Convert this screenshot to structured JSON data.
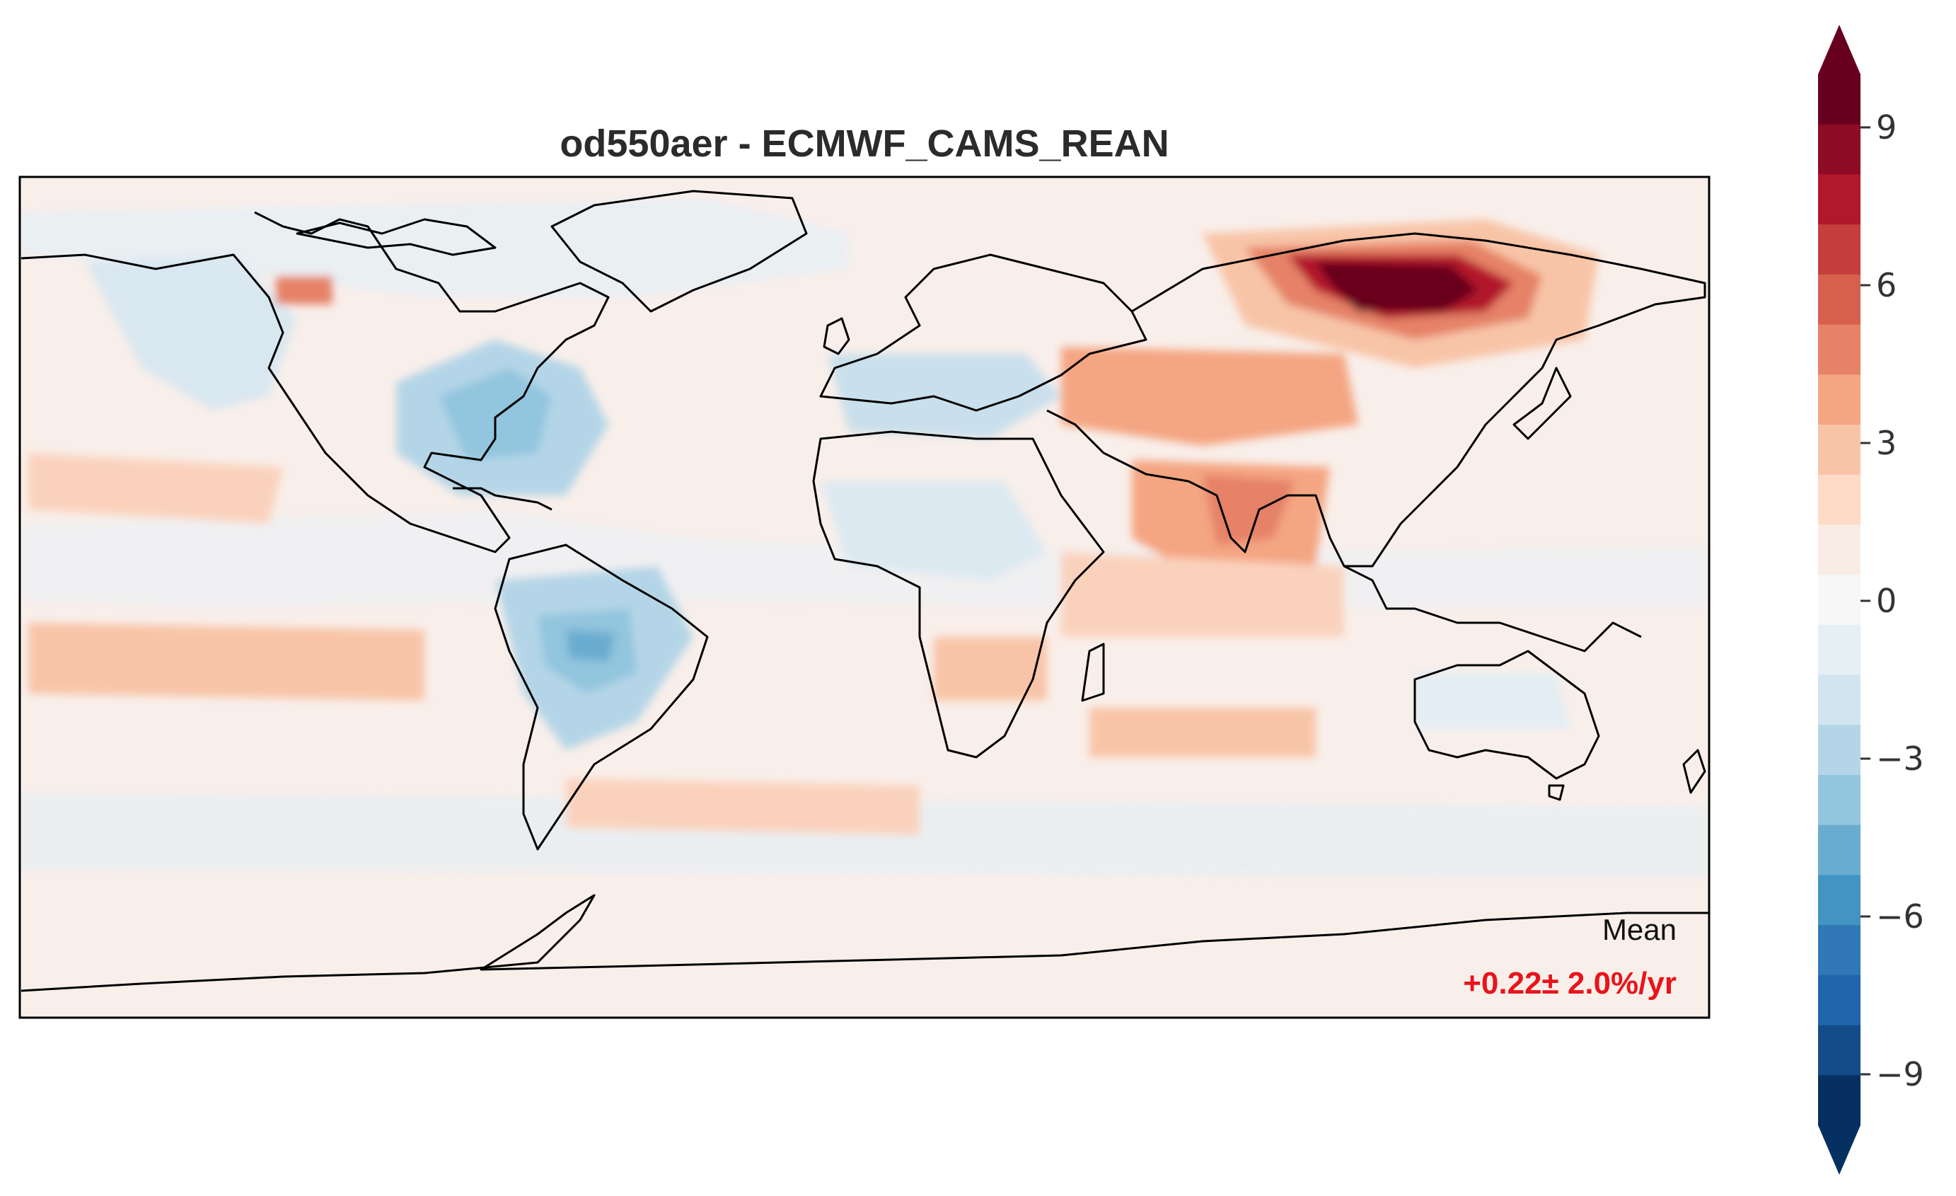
{
  "title": "od550aer - ECMWF_CAMS_REAN",
  "annotation": {
    "label": "Mean",
    "value": "+0.22± 2.0%/yr",
    "value_color": "#e8141b"
  },
  "colorbar": {
    "ticks": [
      "9",
      "6",
      "3",
      "0",
      "−3",
      "−6",
      "−9"
    ],
    "range": [
      -10,
      10
    ],
    "extend": "both",
    "colors_top_to_bottom": [
      "#67001f",
      "#8e0b25",
      "#b2182b",
      "#c53e3d",
      "#d6604d",
      "#e58267",
      "#f4a582",
      "#f8c4a7",
      "#fddbc7",
      "#f9ece5",
      "#f7f7f7",
      "#e6eff4",
      "#d1e5f0",
      "#b4d5e7",
      "#92c5de",
      "#6aacd0",
      "#4393c3",
      "#3079b6",
      "#2166ac",
      "#134c88",
      "#053061"
    ]
  },
  "map": {
    "projection": "PlateCarree",
    "ocean_tint": "#f9efea",
    "coastline_color": "#000000"
  }
}
